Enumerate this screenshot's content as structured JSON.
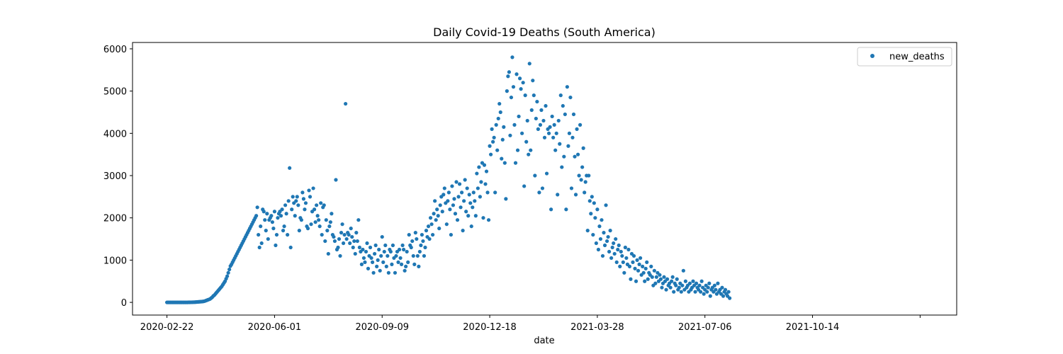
{
  "chart_data": {
    "type": "scatter",
    "title": "Daily Covid-19 Deaths (South America)",
    "xlabel": "date",
    "ylabel": "",
    "x_axis_kind": "date",
    "xlim": [
      "2020-01-21",
      "2022-02-25"
    ],
    "ylim": [
      -300,
      6150
    ],
    "yticks": [
      0,
      1000,
      2000,
      3000,
      4000,
      5000,
      6000
    ],
    "xticks": [
      "2020-02-22",
      "2020-06-01",
      "2020-09-09",
      "2020-12-18",
      "2021-03-28",
      "2021-07-06",
      "2021-10-14",
      "2022-01-22"
    ],
    "xtick_labels": [
      "2020-02-22",
      "2020-06-01",
      "2020-09-09",
      "2020-12-18",
      "2021-03-28",
      "2021-07-06",
      "2021-10-14",
      ""
    ],
    "grid": false,
    "legend": "top-right",
    "marker_color": "#1f77b4",
    "series": [
      {
        "name": "new_deaths",
        "start_date": "2020-02-22",
        "values": [
          0,
          0,
          0,
          0,
          0,
          0,
          0,
          0,
          0,
          0,
          0,
          0,
          0,
          0,
          0,
          0,
          0,
          0,
          0,
          0,
          1,
          1,
          2,
          3,
          4,
          5,
          6,
          8,
          10,
          12,
          14,
          16,
          18,
          20,
          25,
          30,
          40,
          50,
          60,
          70,
          80,
          100,
          120,
          150,
          170,
          200,
          230,
          260,
          290,
          320,
          350,
          380,
          420,
          460,
          500,
          560,
          620,
          700,
          780,
          860,
          900,
          950,
          1000,
          1050,
          1100,
          1150,
          1200,
          1250,
          1300,
          1350,
          1400,
          1450,
          1500,
          1550,
          1600,
          1650,
          1700,
          1750,
          1800,
          1850,
          1900,
          1950,
          2000,
          2050,
          2250,
          1600,
          1300,
          1800,
          1400,
          2200,
          2150,
          1950,
          1700,
          2100,
          1500,
          1950,
          2000,
          2050,
          1900,
          1750,
          2150,
          1350,
          1600,
          2000,
          2100,
          2150,
          2050,
          2200,
          1700,
          1800,
          2300,
          2100,
          1600,
          2400,
          3180,
          1300,
          2200,
          2500,
          2350,
          2050,
          2400,
          2500,
          2300,
          1700,
          2000,
          1950,
          2600,
          2450,
          2200,
          2350,
          1800,
          1750,
          2650,
          2500,
          1850,
          2150,
          2700,
          2200,
          1900,
          2300,
          2050,
          1950,
          1800,
          2350,
          1600,
          2250,
          2300,
          1450,
          1950,
          1700,
          1150,
          1800,
          1900,
          2100,
          1600,
          1550,
          1450,
          2900,
          1250,
          1300,
          1500,
          1100,
          1650,
          1850,
          1400,
          1600,
          4700,
          1500,
          1650,
          1600,
          1400,
          1750,
          1550,
          1300,
          1450,
          1150,
          1650,
          1450,
          1950,
          1300,
          1200,
          900,
          1250,
          1050,
          950,
          1200,
          1400,
          800,
          1100,
          1300,
          1050,
          950,
          700,
          1150,
          1350,
          850,
          1000,
          1250,
          750,
          1100,
          1550,
          950,
          1200,
          1350,
          850,
          1100,
          700,
          1250,
          1200,
          900,
          1350,
          1050,
          700,
          1100,
          1200,
          950,
          1250,
          1050,
          900,
          1350,
          1250,
          750,
          850,
          1200,
          950,
          1600,
          1350,
          1300,
          1450,
          1100,
          900,
          1650,
          1500,
          1100,
          850,
          1200,
          1350,
          1600,
          1450,
          1100,
          1300,
          1700,
          1550,
          1800,
          1500,
          2000,
          1850,
          1600,
          2100,
          2400,
          1950,
          2200,
          2050,
          1750,
          2300,
          2500,
          2150,
          2550,
          2700,
          2350,
          1850,
          2400,
          2600,
          2200,
          1600,
          2750,
          2300,
          2450,
          2100,
          2850,
          1950,
          2500,
          2800,
          2250,
          2600,
          1700,
          2400,
          2900,
          2150,
          2700,
          2050,
          2550,
          2350,
          1800,
          2250,
          2600,
          2400,
          2050,
          3050,
          2700,
          3200,
          2500,
          2850,
          3300,
          2000,
          3250,
          2800,
          3100,
          2600,
          1950,
          3700,
          3500,
          4100,
          3800,
          3900,
          2600,
          4200,
          3600,
          4350,
          4700,
          4500,
          3400,
          3850,
          4150,
          3300,
          2450,
          5000,
          5350,
          5450,
          3950,
          4850,
          5800,
          5100,
          4200,
          3300,
          5400,
          3600,
          4400,
          5300,
          5050,
          4000,
          5200,
          2750,
          4900,
          3800,
          4300,
          3500,
          5650,
          3600,
          4550,
          5250,
          4900,
          3000,
          4350,
          4750,
          4100,
          2600,
          4200,
          4550,
          2700,
          4300,
          3900,
          4650,
          3050,
          4100,
          4000,
          4150,
          2200,
          4400,
          3900,
          4200,
          3600,
          4000,
          2550,
          4300,
          3750,
          4900,
          3200,
          4650,
          3450,
          4450,
          2200,
          5100,
          3700,
          4000,
          4850,
          2700,
          3900,
          4450,
          3450,
          2550,
          4100,
          3500,
          3000,
          4200,
          2900,
          3200,
          3650,
          2600,
          2850,
          3000,
          1700,
          3000,
          2400,
          2100,
          2500,
          1600,
          2350,
          2000,
          1400,
          2200,
          1250,
          1800,
          1500,
          1950,
          1100,
          1650,
          1350,
          2300,
          1450,
          1550,
          1200,
          1700,
          1050,
          1300,
          1400,
          1150,
          1500,
          950,
          1250,
          1350,
          850,
          1200,
          1100,
          950,
          700,
          1300,
          1050,
          900,
          1250,
          850,
          550,
          1150,
          950,
          1100,
          800,
          500,
          1000,
          750,
          900,
          1050,
          650,
          850,
          700,
          500,
          800,
          950,
          550,
          700,
          650,
          850,
          600,
          400,
          750,
          450,
          600,
          700,
          500,
          650,
          550,
          350,
          450,
          600,
          500,
          300,
          550,
          400,
          450,
          350,
          500,
          600,
          250,
          450,
          400,
          550,
          300,
          350,
          450,
          250,
          400,
          750,
          300,
          500,
          350,
          400,
          250,
          450,
          300,
          350,
          500,
          400,
          250,
          450,
          350,
          300,
          400,
          250,
          500,
          350,
          200,
          300,
          400,
          250,
          350,
          450,
          150,
          300,
          350,
          250,
          400,
          300,
          200,
          450,
          250,
          300,
          200,
          350,
          150,
          250,
          300,
          200,
          150,
          250,
          100
        ]
      }
    ]
  }
}
